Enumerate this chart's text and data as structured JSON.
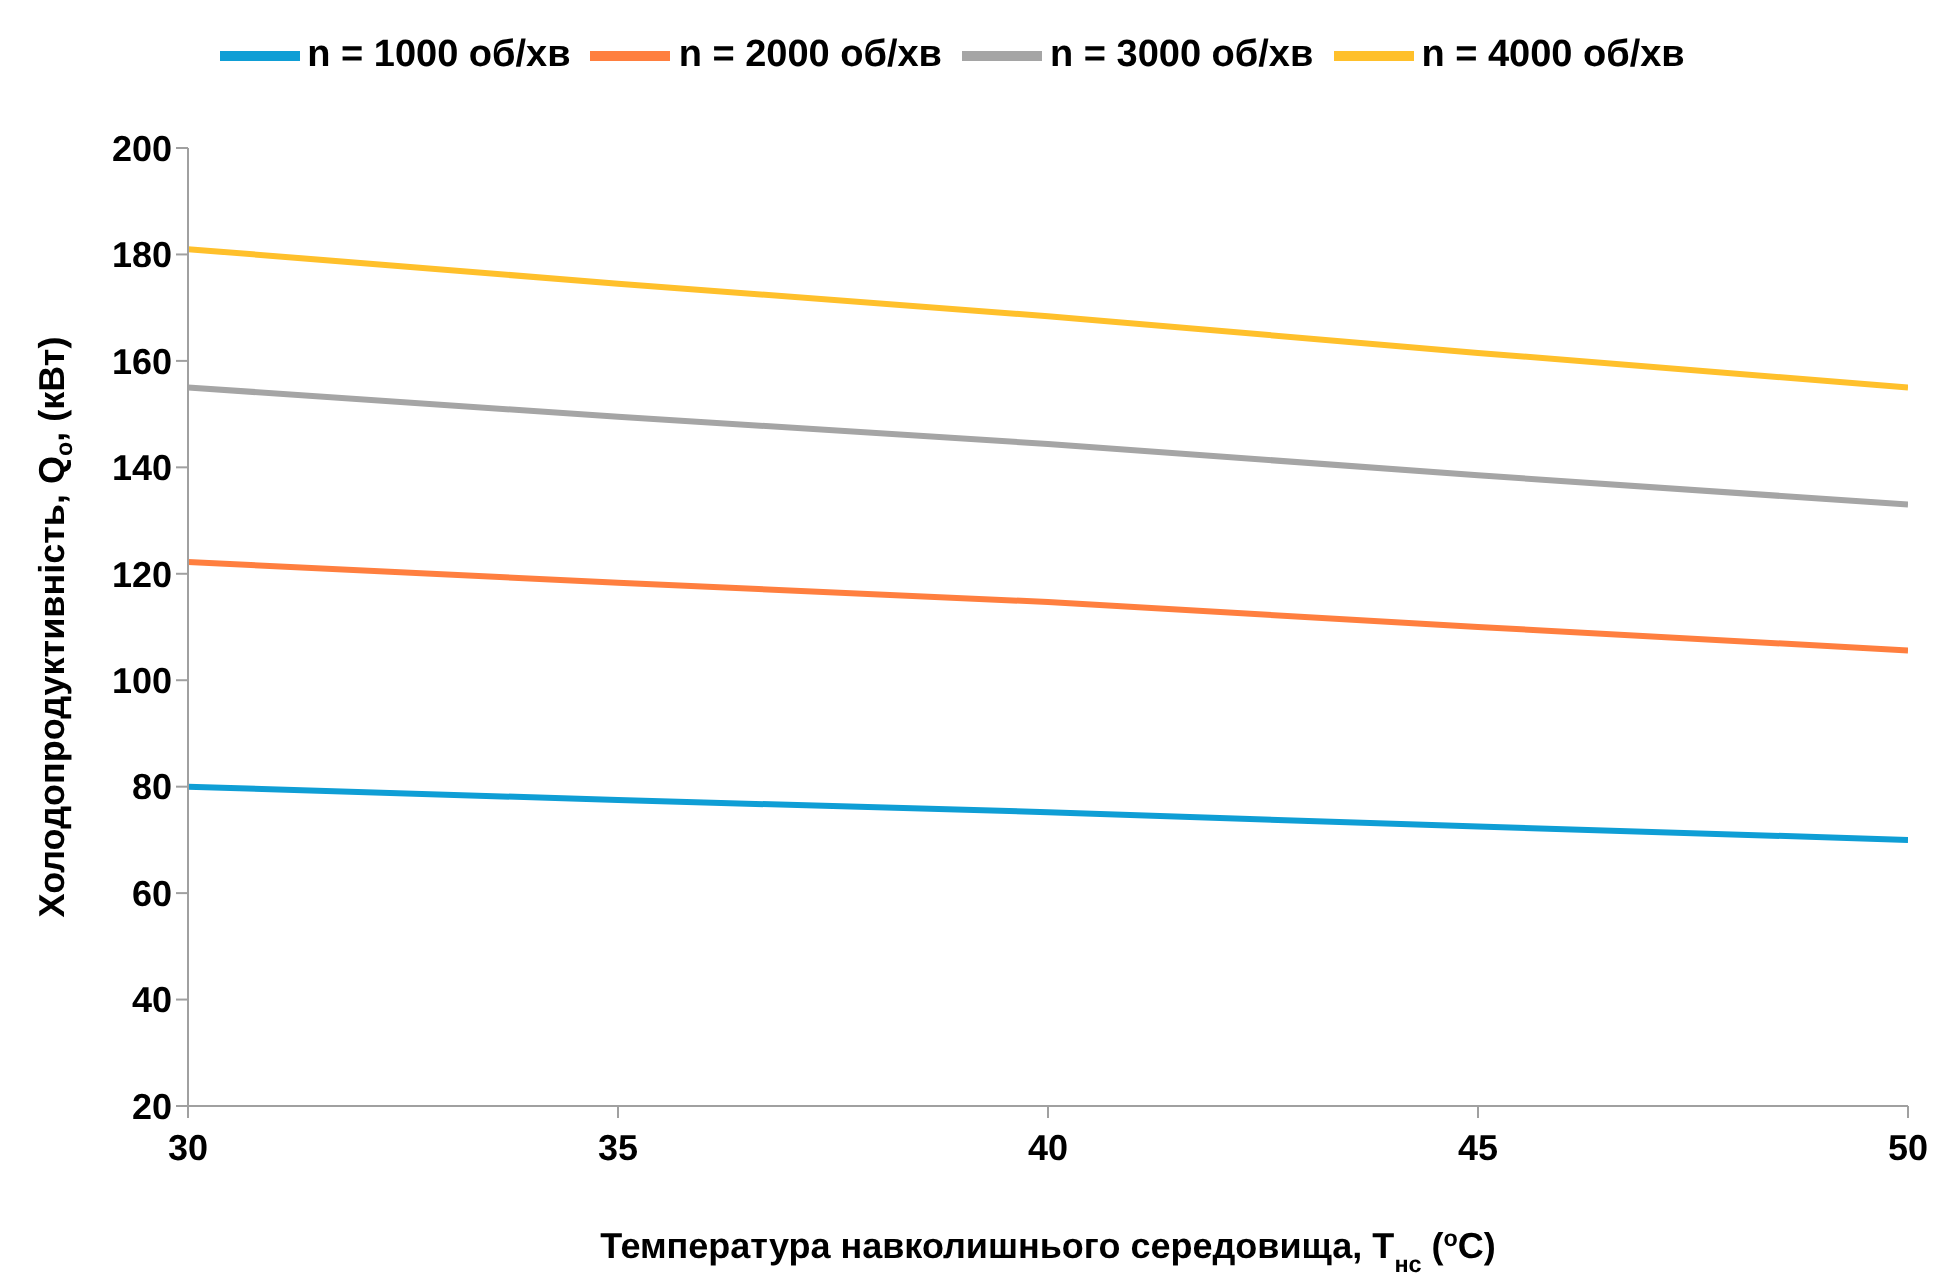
{
  "chart_data": {
    "type": "line",
    "xlabel": "Температура навколишнього середовища, T$_{нс}$ ($^{o}$C)",
    "ylabel": "Холодопродуктивність, Q$_{о}$, (кВт)",
    "x": [
      30,
      35,
      40,
      45,
      50
    ],
    "series": [
      {
        "name": "n = 1000 об/хв",
        "color": "#0f9ed5",
        "values": [
          80,
          77.5,
          75.2,
          72.5,
          70
        ]
      },
      {
        "name": "n = 2000 об/хв",
        "color": "#ff7f3f",
        "values": [
          122.2,
          118.3,
          114.7,
          110,
          105.6
        ]
      },
      {
        "name": "n = 3000 об/хв",
        "color": "#a5a5a5",
        "values": [
          155,
          149.5,
          144.4,
          138.5,
          133
        ]
      },
      {
        "name": "n = 4000 об/хв",
        "color": "#ffc02b",
        "values": [
          181,
          174.5,
          168.4,
          161.5,
          155
        ]
      }
    ],
    "xlim": [
      30,
      50
    ],
    "xticks": [
      30,
      35,
      40,
      45,
      50
    ],
    "ylim": [
      20,
      200
    ],
    "yticks": [
      20,
      40,
      60,
      80,
      100,
      120,
      140,
      160,
      180,
      200
    ],
    "grid": false,
    "legend": "top",
    "marker": "none",
    "line_style": "solid"
  }
}
